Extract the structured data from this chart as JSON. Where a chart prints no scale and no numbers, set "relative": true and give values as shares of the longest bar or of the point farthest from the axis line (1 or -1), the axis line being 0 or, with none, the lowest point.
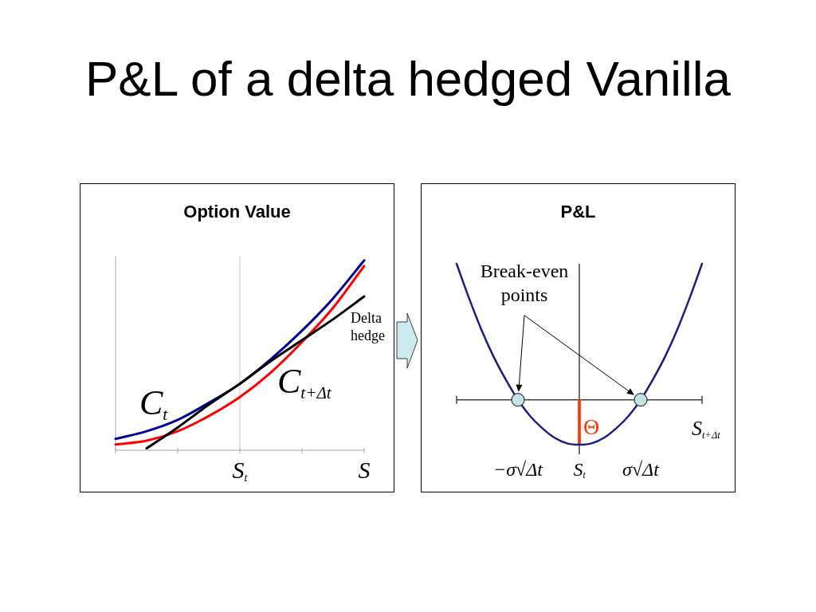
{
  "chart_data": [
    {
      "type": "line",
      "title": "P&L of a delta hedged Vanilla",
      "subtitle": "Option Value",
      "categories": [
        null,
        null,
        null,
        null,
        "S$_{t}$",
        null,
        null,
        null,
        "S"
      ],
      "relative": true,
      "grid": "x",
      "series": [
        {
          "name": "C$_{t}$",
          "color": "#000099",
          "values": [
            0.06,
            0.1,
            0.16,
            0.25,
            0.35,
            0.48,
            0.63,
            0.8,
            1.0
          ]
        },
        {
          "name": "C$_{t+Δt}$",
          "color": "#ff0000",
          "values": [
            0.03,
            0.05,
            0.1,
            0.18,
            0.28,
            0.41,
            0.57,
            0.75,
            0.97
          ]
        },
        {
          "name": "Delta hedge",
          "color": "#000000",
          "values": [
            null,
            0.01,
            0.12,
            0.24,
            0.35,
            0.47,
            0.58,
            0.69,
            0.81
          ]
        }
      ]
    },
    {
      "type": "line",
      "title": "P&L",
      "xlabel": "S$_{t+Δt}$",
      "categories": [
        null,
        null,
        null,
        null,
        null,
        "−σ√Δt",
        null,
        null,
        null,
        null,
        "S$_{t}$",
        null,
        null,
        null,
        null,
        "σ√Δt",
        null,
        null,
        null,
        null,
        null
      ],
      "relative": true,
      "series": [
        {
          "color": "#1c1c84",
          "values": [
            1.0,
            0.75,
            0.52,
            0.32,
            0.15,
            0,
            -0.12,
            -0.21,
            -0.28,
            -0.32,
            -0.33,
            -0.32,
            -0.28,
            -0.21,
            -0.12,
            0,
            0.15,
            0.32,
            0.52,
            0.75,
            1.0
          ]
        },
        {
          "name": "Θ",
          "type": "bar",
          "color": "#ff3300",
          "values": [
            null,
            null,
            null,
            null,
            null,
            null,
            null,
            null,
            null,
            null,
            -0.33,
            null,
            null,
            null,
            null,
            null,
            null,
            null,
            null,
            null,
            null
          ]
        },
        {
          "name": "Break-even points",
          "type": "scatter",
          "color": "#c5e3e6",
          "marker": "circle",
          "values": [
            null,
            null,
            null,
            null,
            null,
            0,
            null,
            null,
            null,
            null,
            null,
            null,
            null,
            null,
            null,
            0,
            null,
            null,
            null,
            null,
            null
          ]
        }
      ]
    }
  ]
}
